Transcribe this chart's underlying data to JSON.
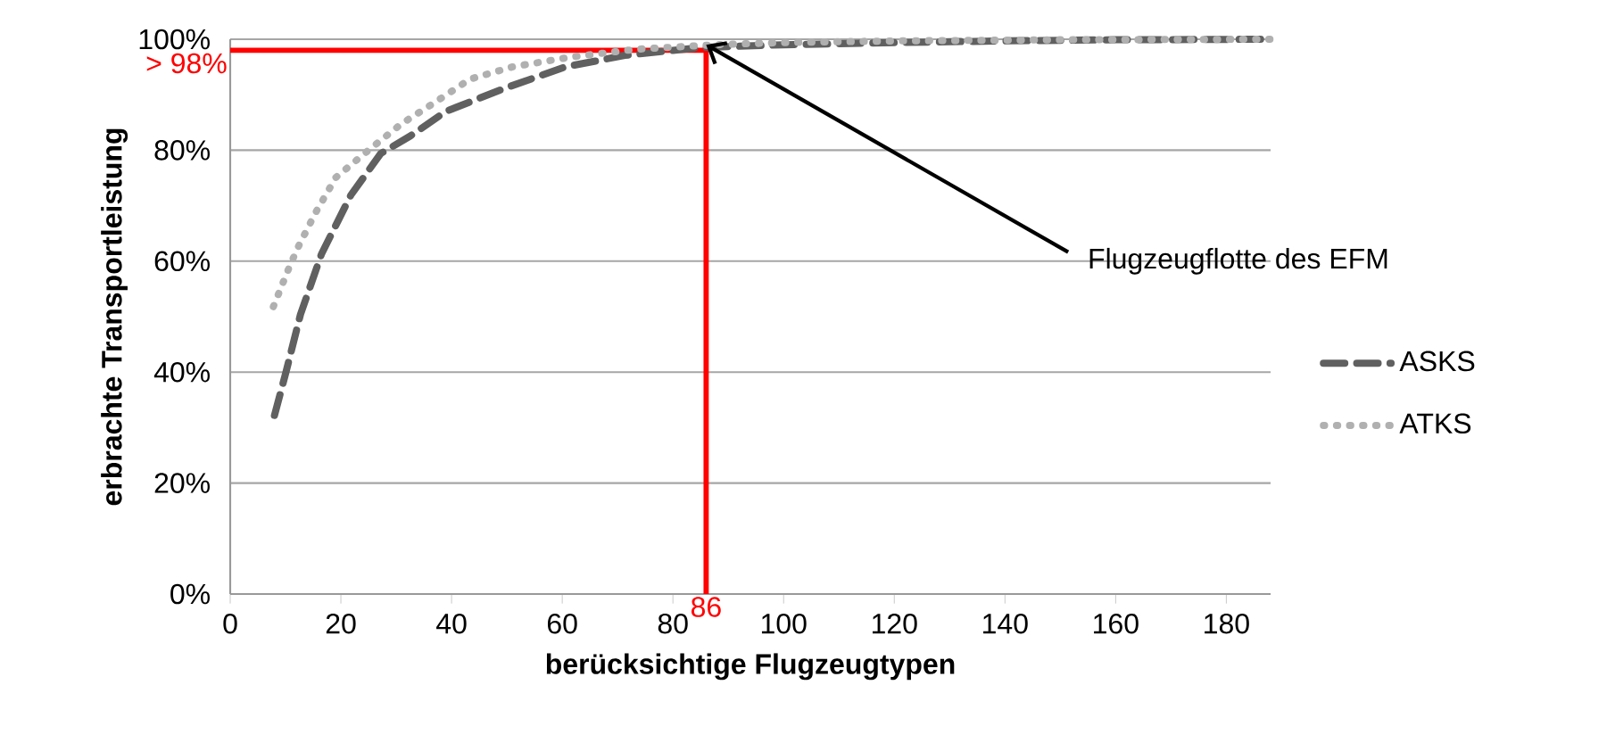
{
  "chart_data": {
    "type": "line",
    "xlabel": "berücksichtige Flugzeugtypen",
    "ylabel": "erbrachte Transportleistung",
    "xlim": [
      0,
      188
    ],
    "xticks": [
      0,
      20,
      40,
      60,
      80,
      100,
      120,
      140,
      160,
      180
    ],
    "ylim": [
      0,
      100
    ],
    "yticks": [
      {
        "value": 0,
        "label": "0%"
      },
      {
        "value": 20,
        "label": "20%"
      },
      {
        "value": 40,
        "label": "40%"
      },
      {
        "value": 60,
        "label": "60%"
      },
      {
        "value": 80,
        "label": "80%"
      },
      {
        "value": 100,
        "label": "100%"
      }
    ],
    "grid": "y",
    "legend": "right",
    "marker": "none",
    "series": [
      {
        "name": "ASKS",
        "color": "#606060",
        "line_style": "dashed",
        "x": [
          8,
          10,
          12.7,
          16.5,
          21.8,
          27.2,
          32.6,
          39,
          49.7,
          60.5,
          71.3,
          85,
          100,
          120,
          140,
          160,
          188
        ],
        "values": [
          32.2,
          39.7,
          50.4,
          61.3,
          71.9,
          79.4,
          82.6,
          87,
          91.2,
          95,
          97.1,
          98.5,
          99,
          99.4,
          99.7,
          99.9,
          100
        ]
      },
      {
        "name": "ATKS",
        "color": "#b0b0b0",
        "line_style": "dotted",
        "x": [
          7.8,
          10.5,
          12.1,
          15.4,
          19.1,
          25,
          31,
          36.8,
          43.3,
          50.9,
          61.6,
          73.4,
          87.5,
          100,
          120,
          150,
          188
        ],
        "values": [
          51.8,
          58.5,
          62.2,
          68.7,
          75.1,
          80,
          84.8,
          88.5,
          92.8,
          95,
          96.8,
          98.2,
          99,
          99.4,
          99.7,
          99.9,
          100
        ]
      }
    ],
    "ref_lines": [
      {
        "axis": "y",
        "value": 98,
        "label": "> 98%",
        "color": "#ff0000"
      },
      {
        "axis": "x",
        "value": 86,
        "label": "86",
        "color": "#ff0000"
      }
    ],
    "annotations": [
      {
        "text": "Flugzeugflotte des EFM",
        "x": 86,
        "y": 99
      }
    ]
  }
}
